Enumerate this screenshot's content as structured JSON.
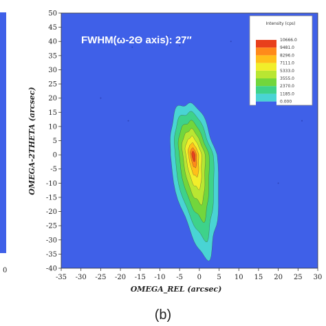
{
  "chart_data": {
    "type": "heatmap",
    "xlabel": "OMEGA_REL (arcsec)",
    "ylabel": "OMEGA-2THETA (arcsec)",
    "xlim": [
      -35,
      30
    ],
    "ylim": [
      -40,
      50
    ],
    "x_ticks": [
      -35,
      -30,
      -25,
      -20,
      -15,
      -10,
      -5,
      0,
      5,
      10,
      15,
      20,
      25,
      30
    ],
    "y_ticks": [
      -40,
      -35,
      -30,
      -25,
      -20,
      -15,
      -10,
      -5,
      0,
      5,
      10,
      15,
      20,
      25,
      30,
      35,
      40,
      45,
      50
    ],
    "annotation": "FWHM(ω-2Θ axis): 27″",
    "panel_label": "(b)",
    "legend": {
      "title": "Intensity (cps)",
      "placement": "top-right",
      "levels": [
        {
          "value": "10666.0",
          "color": "#e8401c"
        },
        {
          "value": "9481.0",
          "color": "#ff8a1a"
        },
        {
          "value": "8296.0",
          "color": "#ffbf1a"
        },
        {
          "value": "7111.0",
          "color": "#f1ee2a"
        },
        {
          "value": "5333.0",
          "color": "#b9e632"
        },
        {
          "value": "3555.0",
          "color": "#72d63c"
        },
        {
          "value": "2370.0",
          "color": "#3ed28a"
        },
        {
          "value": "1185.0",
          "color": "#49d4d4"
        },
        {
          "value": "0.000",
          "color": "#3f60e8"
        }
      ]
    },
    "peak": {
      "x": -1.5,
      "y": 0
    },
    "background_color": "#3f60e8",
    "left_panel_edge_tick": "0"
  }
}
